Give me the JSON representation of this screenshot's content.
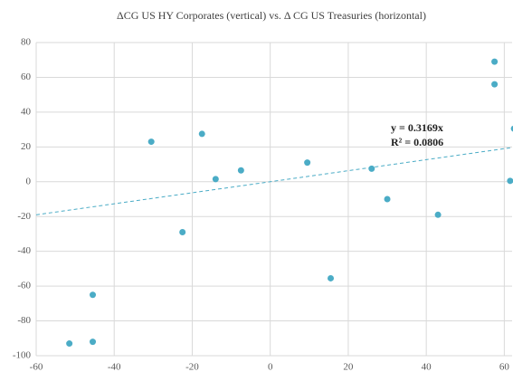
{
  "chart_data": {
    "type": "scatter",
    "title": "ΔCG US HY Corporates (vertical) vs. Δ CG US Treasuries (horizontal)",
    "series": [
      {
        "color": "#4bacc6",
        "x": [
          -51.5,
          -45.5,
          -45.5,
          -30.5,
          -22.5,
          -17.5,
          -14,
          -7.5,
          9.5,
          15.5,
          26,
          30,
          43,
          57.5,
          57.5,
          61.5,
          62.5
        ],
        "values": [
          -93,
          -92,
          -65,
          23,
          -29,
          27.5,
          1.5,
          6.5,
          11,
          -55.5,
          7.5,
          -10,
          -19,
          69,
          56,
          0.5,
          30.5
        ]
      }
    ],
    "trendline": {
      "slope": 0.3169,
      "color": "#4bacc6",
      "labels": [
        "y = 0.3169x",
        "R² = 0.0806"
      ]
    },
    "xlim": [
      -60,
      62
    ],
    "ylim": [
      -100,
      80
    ],
    "xticks": [
      -60,
      -40,
      -20,
      0,
      20,
      40,
      60
    ],
    "yticks": [
      -100,
      -80,
      -60,
      -40,
      -20,
      0,
      20,
      40,
      60,
      80
    ],
    "grid": true
  }
}
